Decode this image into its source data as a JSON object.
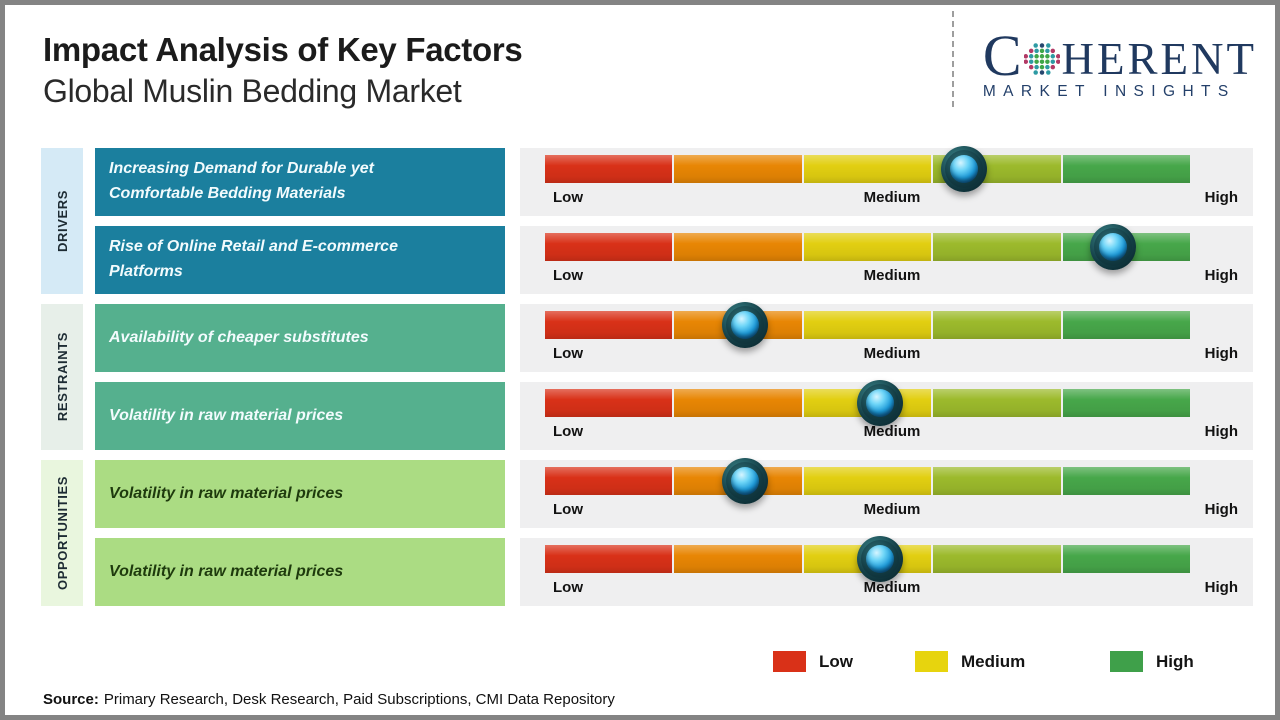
{
  "header": {
    "title": "Impact Analysis of Key Factors",
    "subtitle": "Global Muslin Bedding Market"
  },
  "logo": {
    "prefix": "C",
    "suffix": "HERENT",
    "tagline": "MARKET INSIGHTS",
    "navy": "#20395f"
  },
  "categories": [
    {
      "label": "DRIVERS"
    },
    {
      "label": "RESTRAINTS"
    },
    {
      "label": "OPPORTUNITIES"
    }
  ],
  "rows": [
    {
      "category": "DRIVERS",
      "label": "Increasing Demand for Durable yet Comfortable Bedding Materials",
      "impact_percent": 65
    },
    {
      "category": "DRIVERS",
      "label": "Rise of Online Retail and E-commerce Platforms",
      "impact_percent": 88
    },
    {
      "category": "RESTRAINTS",
      "label": "Availability of cheaper substitutes",
      "impact_percent": 31
    },
    {
      "category": "RESTRAINTS",
      "label": "Volatility in raw material prices",
      "impact_percent": 52
    },
    {
      "category": "OPPORTUNITIES",
      "label": "Volatility in raw material prices",
      "impact_percent": 31
    },
    {
      "category": "OPPORTUNITIES",
      "label": "Volatility in raw material prices",
      "impact_percent": 52
    }
  ],
  "scale_labels": {
    "low": "Low",
    "medium": "Medium",
    "high": "High"
  },
  "legend": [
    {
      "label": "Low",
      "color": "#d93118"
    },
    {
      "label": "Medium",
      "color": "#e7d40e"
    },
    {
      "label": "High",
      "color": "#3fa04a"
    }
  ],
  "source": {
    "label": "Source:",
    "text": "Primary Research, Desk Research, Paid Subscriptions, CMI Data Repository"
  },
  "colors": {
    "driver_box": "#1b7f9e",
    "driver_tab": "#d5eaf6",
    "restraint_box": "#55b08e",
    "restraint_tab": "#e7efe9",
    "opportunity_box": "#abdc83",
    "opportunity_tab": "#e9f6de",
    "row_band": "#efeff0"
  },
  "chart_data": {
    "type": "table",
    "title": "Impact Analysis of Key Factors",
    "subtitle": "Global Muslin Bedding Market",
    "scale": {
      "min_label": "Low",
      "mid_label": "Medium",
      "max_label": "High",
      "range": [
        0,
        100
      ]
    },
    "segment_colors": [
      "#d93118",
      "#e88604",
      "#e2cf11",
      "#9cba2c",
      "#47a74a"
    ],
    "groups": [
      {
        "category": "Drivers",
        "factors": [
          {
            "name": "Increasing Demand for Durable yet Comfortable Bedding Materials",
            "impact_percent": 65,
            "impact_level": "Medium-High"
          },
          {
            "name": "Rise of Online Retail and E-commerce Platforms",
            "impact_percent": 88,
            "impact_level": "High"
          }
        ]
      },
      {
        "category": "Restraints",
        "factors": [
          {
            "name": "Availability of cheaper substitutes",
            "impact_percent": 31,
            "impact_level": "Low-Medium"
          },
          {
            "name": "Volatility in raw material prices",
            "impact_percent": 52,
            "impact_level": "Medium"
          }
        ]
      },
      {
        "category": "Opportunities",
        "factors": [
          {
            "name": "Volatility in raw material prices",
            "impact_percent": 31,
            "impact_level": "Low-Medium"
          },
          {
            "name": "Volatility in raw material prices",
            "impact_percent": 52,
            "impact_level": "Medium"
          }
        ]
      }
    ],
    "legend": [
      "Low",
      "Medium",
      "High"
    ],
    "legend_position": "bottom-right"
  }
}
